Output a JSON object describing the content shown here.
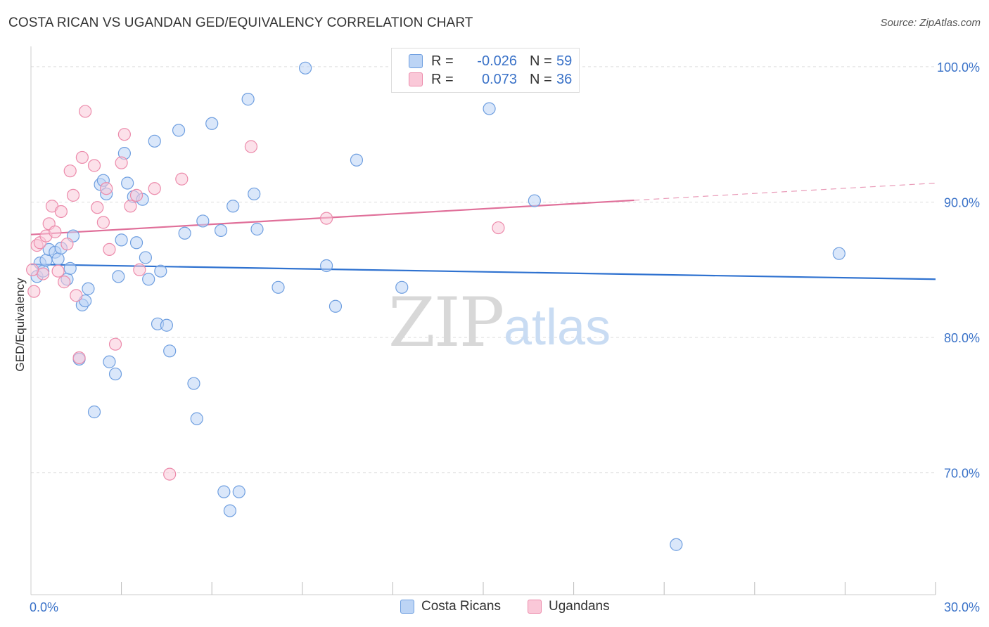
{
  "title": "COSTA RICAN VS UGANDAN GED/EQUIVALENCY CORRELATION CHART",
  "source": "Source: ZipAtlas.com",
  "watermark": {
    "zip": "ZIP",
    "atlas": "atlas"
  },
  "legend_top": {
    "rows": [
      {
        "r_label": "R =",
        "r_value": "-0.026",
        "n_label": "N =",
        "n_value": "59"
      },
      {
        "r_label": "R =",
        "r_value": "0.073",
        "n_label": "N =",
        "n_value": "36"
      }
    ]
  },
  "legend_bottom": [
    "Costa Ricans",
    "Ugandans"
  ],
  "colors": {
    "blue_fill": "#bcd4f5",
    "blue_stroke": "#6f9fe0",
    "blue_line": "#2f72d0",
    "pink_fill": "#fac8d8",
    "pink_stroke": "#ec8bab",
    "pink_line": "#e0709a",
    "tick_label": "#3a72c8",
    "grid": "#dddddd"
  },
  "chart_data": {
    "type": "scatter",
    "ylabel": "GED/Equivalency",
    "xlabel": "",
    "xlim": [
      0,
      30
    ],
    "ylim": [
      61,
      101.5
    ],
    "x_tick_labels": [
      {
        "value": 0,
        "label": "0.0%"
      },
      {
        "value": 30,
        "label": "30.0%"
      }
    ],
    "y_tick_labels": [
      {
        "value": 100,
        "label": "100.0%"
      },
      {
        "value": 90,
        "label": "90.0%"
      },
      {
        "value": 80,
        "label": "80.0%"
      },
      {
        "value": 70,
        "label": "70.0%"
      }
    ],
    "y_gridlines": [
      100,
      90,
      80,
      70
    ],
    "x_minor_ticks": [
      3,
      6,
      9,
      12,
      15,
      18,
      21,
      24,
      27,
      30
    ],
    "grid": true,
    "legend_position": "top-center",
    "series": [
      {
        "name": "Costa Ricans",
        "color": "blue",
        "trend": {
          "x": [
            0,
            30
          ],
          "y": [
            85.4,
            84.3
          ],
          "dashed_from": null
        },
        "points": [
          [
            0.2,
            84.5
          ],
          [
            0.3,
            85.5
          ],
          [
            0.4,
            84.9
          ],
          [
            0.5,
            85.7
          ],
          [
            0.6,
            86.5
          ],
          [
            0.8,
            86.3
          ],
          [
            0.9,
            85.8
          ],
          [
            1.0,
            86.6
          ],
          [
            1.2,
            84.3
          ],
          [
            1.3,
            85.1
          ],
          [
            1.4,
            87.5
          ],
          [
            1.6,
            78.4
          ],
          [
            1.7,
            82.4
          ],
          [
            1.8,
            82.7
          ],
          [
            1.9,
            83.6
          ],
          [
            2.1,
            74.5
          ],
          [
            2.3,
            91.3
          ],
          [
            2.4,
            91.6
          ],
          [
            2.5,
            90.6
          ],
          [
            2.6,
            78.2
          ],
          [
            2.8,
            77.3
          ],
          [
            2.9,
            84.5
          ],
          [
            3.0,
            87.2
          ],
          [
            3.1,
            93.6
          ],
          [
            3.2,
            91.4
          ],
          [
            3.4,
            90.4
          ],
          [
            3.5,
            87.0
          ],
          [
            3.7,
            90.2
          ],
          [
            3.8,
            85.9
          ],
          [
            3.9,
            84.3
          ],
          [
            4.1,
            94.5
          ],
          [
            4.2,
            81.0
          ],
          [
            4.3,
            84.9
          ],
          [
            4.5,
            80.9
          ],
          [
            4.6,
            79.0
          ],
          [
            4.9,
            95.3
          ],
          [
            5.1,
            87.7
          ],
          [
            5.4,
            76.6
          ],
          [
            5.5,
            74.0
          ],
          [
            5.7,
            88.6
          ],
          [
            6.0,
            95.8
          ],
          [
            6.3,
            87.9
          ],
          [
            6.4,
            68.6
          ],
          [
            6.6,
            67.2
          ],
          [
            6.7,
            89.7
          ],
          [
            6.9,
            68.6
          ],
          [
            7.2,
            97.6
          ],
          [
            7.4,
            90.6
          ],
          [
            7.5,
            88.0
          ],
          [
            8.2,
            83.7
          ],
          [
            9.1,
            99.9
          ],
          [
            9.8,
            85.3
          ],
          [
            10.1,
            82.3
          ],
          [
            10.8,
            93.1
          ],
          [
            12.3,
            83.7
          ],
          [
            15.2,
            96.9
          ],
          [
            16.7,
            90.1
          ],
          [
            21.4,
            64.7
          ],
          [
            26.8,
            86.2
          ]
        ]
      },
      {
        "name": "Ugandans",
        "color": "pink",
        "trend": {
          "x": [
            0,
            30
          ],
          "y": [
            87.6,
            91.4
          ],
          "dashed_from": 20
        },
        "points": [
          [
            0.1,
            83.4
          ],
          [
            0.2,
            86.8
          ],
          [
            0.3,
            87.0
          ],
          [
            0.4,
            84.7
          ],
          [
            0.5,
            87.5
          ],
          [
            0.6,
            88.4
          ],
          [
            0.7,
            89.7
          ],
          [
            0.8,
            87.8
          ],
          [
            0.9,
            84.9
          ],
          [
            1.0,
            89.3
          ],
          [
            1.1,
            84.1
          ],
          [
            1.2,
            86.9
          ],
          [
            1.3,
            92.3
          ],
          [
            1.4,
            90.5
          ],
          [
            1.5,
            83.1
          ],
          [
            1.6,
            78.5
          ],
          [
            1.7,
            93.3
          ],
          [
            1.8,
            96.7
          ],
          [
            2.1,
            92.7
          ],
          [
            2.2,
            89.6
          ],
          [
            2.4,
            88.5
          ],
          [
            2.5,
            91.0
          ],
          [
            2.6,
            86.5
          ],
          [
            2.8,
            79.5
          ],
          [
            3.0,
            92.9
          ],
          [
            3.1,
            95.0
          ],
          [
            3.3,
            89.7
          ],
          [
            3.5,
            90.5
          ],
          [
            3.6,
            85.0
          ],
          [
            4.1,
            91.0
          ],
          [
            4.6,
            69.9
          ],
          [
            5.0,
            91.7
          ],
          [
            7.3,
            94.1
          ],
          [
            9.8,
            88.8
          ],
          [
            15.5,
            88.1
          ],
          [
            0.05,
            85.0
          ]
        ]
      }
    ]
  }
}
